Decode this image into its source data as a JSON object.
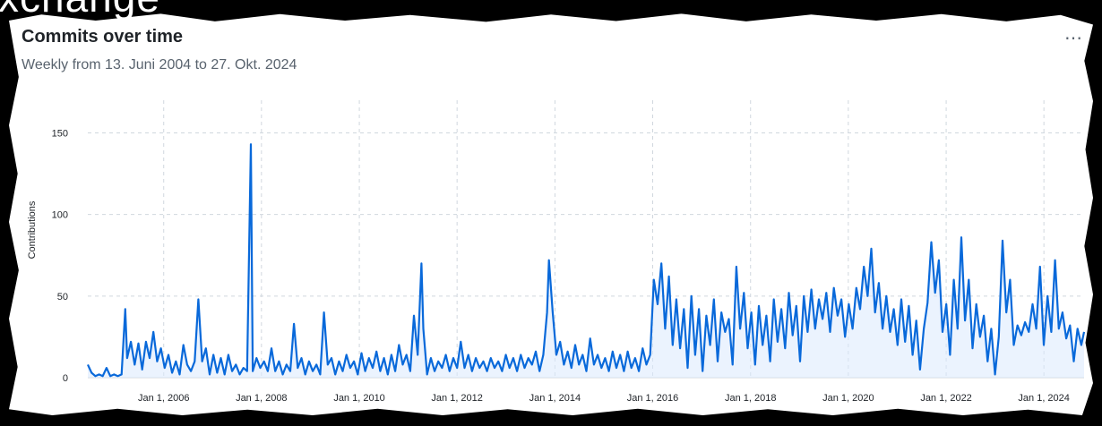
{
  "overlay": {
    "text": "xchange"
  },
  "card": {
    "title": "Commits over time",
    "subtitle": "Weekly from 13. Juni 2004 to 27. Okt. 2024",
    "menu_icon": "kebab-horizontal-icon"
  },
  "colors": {
    "line": "#0969da",
    "area": "#dbeafe",
    "grid": "#d0d7de"
  },
  "chart_data": {
    "type": "area",
    "title": "Commits over time",
    "subtitle": "Weekly from 13. Juni 2004 to 27. Okt. 2024",
    "xlabel": "",
    "ylabel": "Contributions",
    "ylim": [
      0,
      170
    ],
    "xlim": [
      "2004-06-13",
      "2024-10-27"
    ],
    "yticks": [
      0,
      50,
      100,
      150
    ],
    "xticks": [
      {
        "date": "2006-01-01",
        "label": "Jan 1, 2006"
      },
      {
        "date": "2008-01-01",
        "label": "Jan 1, 2008"
      },
      {
        "date": "2010-01-01",
        "label": "Jan 1, 2010"
      },
      {
        "date": "2012-01-01",
        "label": "Jan 1, 2012"
      },
      {
        "date": "2014-01-01",
        "label": "Jan 1, 2014"
      },
      {
        "date": "2016-01-01",
        "label": "Jan 1, 2016"
      },
      {
        "date": "2018-01-01",
        "label": "Jan 1, 2018"
      },
      {
        "date": "2020-01-01",
        "label": "Jan 1, 2020"
      },
      {
        "date": "2022-01-01",
        "label": "Jan 1, 2022"
      },
      {
        "date": "2024-01-01",
        "label": "Jan 1, 2024"
      }
    ],
    "grid": true,
    "legend": "none",
    "series": [
      {
        "points": [
          [
            "2004-06-13",
            8
          ],
          [
            "2004-07-11",
            3
          ],
          [
            "2004-08-08",
            1
          ],
          [
            "2004-09-05",
            2
          ],
          [
            "2004-10-03",
            1
          ],
          [
            "2004-10-31",
            6
          ],
          [
            "2004-11-28",
            1
          ],
          [
            "2004-12-26",
            2
          ],
          [
            "2005-01-23",
            1
          ],
          [
            "2005-02-20",
            2
          ],
          [
            "2005-03-20",
            42
          ],
          [
            "2005-04-03",
            12
          ],
          [
            "2005-05-01",
            22
          ],
          [
            "2005-05-29",
            8
          ],
          [
            "2005-06-26",
            21
          ],
          [
            "2005-07-24",
            5
          ],
          [
            "2005-08-21",
            22
          ],
          [
            "2005-09-18",
            12
          ],
          [
            "2005-10-16",
            28
          ],
          [
            "2005-11-13",
            10
          ],
          [
            "2005-12-11",
            18
          ],
          [
            "2006-01-08",
            6
          ],
          [
            "2006-02-05",
            14
          ],
          [
            "2006-03-05",
            3
          ],
          [
            "2006-04-02",
            10
          ],
          [
            "2006-04-30",
            2
          ],
          [
            "2006-05-28",
            20
          ],
          [
            "2006-06-25",
            8
          ],
          [
            "2006-07-23",
            4
          ],
          [
            "2006-08-20",
            10
          ],
          [
            "2006-09-17",
            48
          ],
          [
            "2006-10-15",
            10
          ],
          [
            "2006-11-12",
            18
          ],
          [
            "2006-12-10",
            2
          ],
          [
            "2007-01-07",
            14
          ],
          [
            "2007-02-04",
            3
          ],
          [
            "2007-03-04",
            12
          ],
          [
            "2007-04-01",
            2
          ],
          [
            "2007-04-29",
            14
          ],
          [
            "2007-05-27",
            4
          ],
          [
            "2007-06-24",
            8
          ],
          [
            "2007-07-22",
            2
          ],
          [
            "2007-08-19",
            6
          ],
          [
            "2007-09-16",
            4
          ],
          [
            "2007-10-14",
            143
          ],
          [
            "2007-10-28",
            4
          ],
          [
            "2007-11-25",
            12
          ],
          [
            "2007-12-23",
            6
          ],
          [
            "2008-01-20",
            10
          ],
          [
            "2008-02-17",
            4
          ],
          [
            "2008-03-16",
            18
          ],
          [
            "2008-04-13",
            4
          ],
          [
            "2008-05-11",
            10
          ],
          [
            "2008-06-08",
            2
          ],
          [
            "2008-07-06",
            8
          ],
          [
            "2008-08-03",
            4
          ],
          [
            "2008-08-31",
            33
          ],
          [
            "2008-09-28",
            6
          ],
          [
            "2008-10-26",
            12
          ],
          [
            "2008-11-23",
            2
          ],
          [
            "2008-12-21",
            10
          ],
          [
            "2009-01-18",
            4
          ],
          [
            "2009-02-15",
            8
          ],
          [
            "2009-03-15",
            2
          ],
          [
            "2009-04-12",
            40
          ],
          [
            "2009-05-10",
            8
          ],
          [
            "2009-06-07",
            12
          ],
          [
            "2009-07-05",
            2
          ],
          [
            "2009-08-02",
            10
          ],
          [
            "2009-08-30",
            4
          ],
          [
            "2009-09-27",
            14
          ],
          [
            "2009-10-25",
            6
          ],
          [
            "2009-11-22",
            10
          ],
          [
            "2009-12-20",
            2
          ],
          [
            "2010-01-17",
            15
          ],
          [
            "2010-02-14",
            4
          ],
          [
            "2010-03-14",
            12
          ],
          [
            "2010-04-11",
            6
          ],
          [
            "2010-05-09",
            16
          ],
          [
            "2010-06-06",
            4
          ],
          [
            "2010-07-04",
            12
          ],
          [
            "2010-08-01",
            2
          ],
          [
            "2010-08-29",
            14
          ],
          [
            "2010-09-26",
            4
          ],
          [
            "2010-10-24",
            20
          ],
          [
            "2010-11-21",
            8
          ],
          [
            "2010-12-19",
            14
          ],
          [
            "2011-01-16",
            4
          ],
          [
            "2011-02-13",
            38
          ],
          [
            "2011-03-13",
            14
          ],
          [
            "2011-04-10",
            70
          ],
          [
            "2011-04-24",
            30
          ],
          [
            "2011-05-22",
            2
          ],
          [
            "2011-06-19",
            12
          ],
          [
            "2011-07-17",
            4
          ],
          [
            "2011-08-14",
            10
          ],
          [
            "2011-09-11",
            6
          ],
          [
            "2011-10-09",
            14
          ],
          [
            "2011-11-06",
            4
          ],
          [
            "2011-12-04",
            12
          ],
          [
            "2012-01-01",
            6
          ],
          [
            "2012-01-29",
            22
          ],
          [
            "2012-02-26",
            6
          ],
          [
            "2012-03-25",
            14
          ],
          [
            "2012-04-22",
            4
          ],
          [
            "2012-05-20",
            12
          ],
          [
            "2012-06-17",
            6
          ],
          [
            "2012-07-15",
            10
          ],
          [
            "2012-08-12",
            4
          ],
          [
            "2012-09-09",
            12
          ],
          [
            "2012-10-07",
            6
          ],
          [
            "2012-11-04",
            10
          ],
          [
            "2012-12-02",
            4
          ],
          [
            "2012-12-30",
            14
          ],
          [
            "2013-01-27",
            6
          ],
          [
            "2013-02-24",
            12
          ],
          [
            "2013-03-24",
            4
          ],
          [
            "2013-04-21",
            14
          ],
          [
            "2013-05-19",
            6
          ],
          [
            "2013-06-16",
            12
          ],
          [
            "2013-07-14",
            8
          ],
          [
            "2013-08-11",
            16
          ],
          [
            "2013-09-08",
            4
          ],
          [
            "2013-10-06",
            14
          ],
          [
            "2013-11-03",
            40
          ],
          [
            "2013-11-17",
            72
          ],
          [
            "2013-12-15",
            40
          ],
          [
            "2014-01-12",
            14
          ],
          [
            "2014-02-09",
            22
          ],
          [
            "2014-03-09",
            8
          ],
          [
            "2014-04-06",
            16
          ],
          [
            "2014-05-04",
            6
          ],
          [
            "2014-06-01",
            20
          ],
          [
            "2014-06-29",
            8
          ],
          [
            "2014-07-27",
            14
          ],
          [
            "2014-08-24",
            4
          ],
          [
            "2014-09-21",
            24
          ],
          [
            "2014-10-19",
            8
          ],
          [
            "2014-11-16",
            14
          ],
          [
            "2014-12-14",
            6
          ],
          [
            "2015-01-11",
            12
          ],
          [
            "2015-02-08",
            4
          ],
          [
            "2015-03-08",
            16
          ],
          [
            "2015-04-05",
            6
          ],
          [
            "2015-05-03",
            14
          ],
          [
            "2015-05-31",
            4
          ],
          [
            "2015-06-28",
            16
          ],
          [
            "2015-07-26",
            6
          ],
          [
            "2015-08-23",
            12
          ],
          [
            "2015-09-20",
            4
          ],
          [
            "2015-10-18",
            18
          ],
          [
            "2015-11-15",
            8
          ],
          [
            "2015-12-13",
            14
          ],
          [
            "2016-01-10",
            60
          ],
          [
            "2016-02-07",
            45
          ],
          [
            "2016-03-06",
            70
          ],
          [
            "2016-04-03",
            30
          ],
          [
            "2016-05-01",
            62
          ],
          [
            "2016-05-29",
            20
          ],
          [
            "2016-06-26",
            48
          ],
          [
            "2016-07-24",
            18
          ],
          [
            "2016-08-21",
            42
          ],
          [
            "2016-09-18",
            6
          ],
          [
            "2016-10-16",
            50
          ],
          [
            "2016-11-13",
            14
          ],
          [
            "2016-12-11",
            42
          ],
          [
            "2017-01-08",
            4
          ],
          [
            "2017-02-05",
            38
          ],
          [
            "2017-03-05",
            20
          ],
          [
            "2017-04-02",
            48
          ],
          [
            "2017-04-30",
            10
          ],
          [
            "2017-05-28",
            40
          ],
          [
            "2017-06-25",
            28
          ],
          [
            "2017-07-23",
            36
          ],
          [
            "2017-08-20",
            8
          ],
          [
            "2017-09-17",
            68
          ],
          [
            "2017-10-15",
            30
          ],
          [
            "2017-11-12",
            52
          ],
          [
            "2017-12-10",
            18
          ],
          [
            "2018-01-07",
            40
          ],
          [
            "2018-02-04",
            8
          ],
          [
            "2018-03-04",
            44
          ],
          [
            "2018-04-01",
            20
          ],
          [
            "2018-04-29",
            38
          ],
          [
            "2018-05-27",
            10
          ],
          [
            "2018-06-24",
            48
          ],
          [
            "2018-07-22",
            22
          ],
          [
            "2018-08-19",
            42
          ],
          [
            "2018-09-16",
            18
          ],
          [
            "2018-10-14",
            52
          ],
          [
            "2018-11-11",
            26
          ],
          [
            "2018-12-09",
            44
          ],
          [
            "2019-01-06",
            10
          ],
          [
            "2019-02-03",
            50
          ],
          [
            "2019-03-03",
            28
          ],
          [
            "2019-03-31",
            54
          ],
          [
            "2019-04-28",
            30
          ],
          [
            "2019-05-26",
            48
          ],
          [
            "2019-06-23",
            36
          ],
          [
            "2019-07-21",
            52
          ],
          [
            "2019-08-18",
            28
          ],
          [
            "2019-09-15",
            55
          ],
          [
            "2019-10-13",
            38
          ],
          [
            "2019-11-10",
            48
          ],
          [
            "2019-12-08",
            25
          ],
          [
            "2020-01-05",
            45
          ],
          [
            "2020-02-02",
            30
          ],
          [
            "2020-03-01",
            55
          ],
          [
            "2020-03-29",
            42
          ],
          [
            "2020-04-26",
            68
          ],
          [
            "2020-05-24",
            50
          ],
          [
            "2020-06-21",
            79
          ],
          [
            "2020-07-19",
            40
          ],
          [
            "2020-08-16",
            58
          ],
          [
            "2020-09-13",
            30
          ],
          [
            "2020-10-11",
            50
          ],
          [
            "2020-11-08",
            28
          ],
          [
            "2020-12-06",
            42
          ],
          [
            "2021-01-03",
            20
          ],
          [
            "2021-01-31",
            48
          ],
          [
            "2021-02-28",
            22
          ],
          [
            "2021-03-28",
            44
          ],
          [
            "2021-04-25",
            14
          ],
          [
            "2021-05-23",
            35
          ],
          [
            "2021-06-20",
            5
          ],
          [
            "2021-07-18",
            30
          ],
          [
            "2021-08-15",
            46
          ],
          [
            "2021-09-12",
            83
          ],
          [
            "2021-10-10",
            52
          ],
          [
            "2021-11-07",
            72
          ],
          [
            "2021-12-05",
            28
          ],
          [
            "2022-01-02",
            45
          ],
          [
            "2022-01-30",
            14
          ],
          [
            "2022-02-27",
            60
          ],
          [
            "2022-03-27",
            30
          ],
          [
            "2022-04-24",
            86
          ],
          [
            "2022-05-22",
            35
          ],
          [
            "2022-06-19",
            60
          ],
          [
            "2022-07-17",
            18
          ],
          [
            "2022-08-14",
            45
          ],
          [
            "2022-09-11",
            25
          ],
          [
            "2022-10-09",
            38
          ],
          [
            "2022-11-06",
            10
          ],
          [
            "2022-12-04",
            30
          ],
          [
            "2023-01-01",
            2
          ],
          [
            "2023-01-29",
            25
          ],
          [
            "2023-02-26",
            84
          ],
          [
            "2023-03-26",
            40
          ],
          [
            "2023-04-23",
            60
          ],
          [
            "2023-05-21",
            20
          ],
          [
            "2023-06-18",
            32
          ],
          [
            "2023-07-16",
            26
          ],
          [
            "2023-08-13",
            34
          ],
          [
            "2023-09-10",
            28
          ],
          [
            "2023-10-08",
            45
          ],
          [
            "2023-11-05",
            30
          ],
          [
            "2023-12-03",
            68
          ],
          [
            "2023-12-31",
            20
          ],
          [
            "2024-01-28",
            50
          ],
          [
            "2024-02-25",
            28
          ],
          [
            "2024-03-24",
            72
          ],
          [
            "2024-04-21",
            30
          ],
          [
            "2024-05-19",
            40
          ],
          [
            "2024-06-16",
            24
          ],
          [
            "2024-07-14",
            32
          ],
          [
            "2024-08-11",
            10
          ],
          [
            "2024-09-08",
            30
          ],
          [
            "2024-10-06",
            20
          ],
          [
            "2024-10-27",
            28
          ]
        ]
      }
    ]
  }
}
